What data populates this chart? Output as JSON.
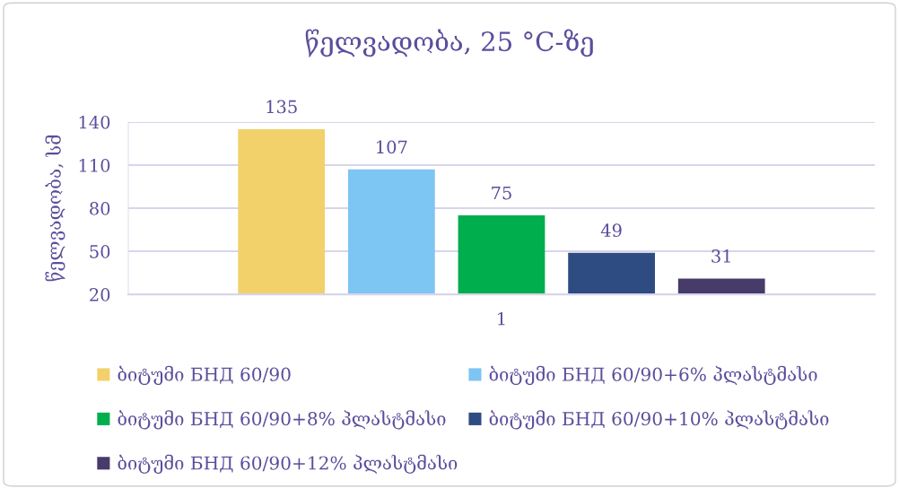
{
  "chart_data": {
    "type": "bar",
    "title": "წელვადობა, 25 °C-ზე",
    "ylabel": "წელვადობა, სმ",
    "categories": [
      "1"
    ],
    "series": [
      {
        "name": "ბიტუმი БНД 60/90",
        "color": "#f2d16b",
        "values": [
          135
        ]
      },
      {
        "name": "ბიტუმი БНД 60/90+6% პლასტმასი",
        "color": "#7dc5f2",
        "values": [
          107
        ]
      },
      {
        "name": "ბიტუმი БНД 60/90+8% პლასტმასი",
        "color": "#00ae4d",
        "values": [
          75
        ]
      },
      {
        "name": "ბიტუმი БНД 60/90+10% პლასტმასი",
        "color": "#2e4b82",
        "values": [
          49
        ]
      },
      {
        "name": "ბიტუმი БНД 60/90+12% პლასტმასი",
        "color": "#463b69",
        "values": [
          31
        ]
      }
    ],
    "ylim": [
      20,
      140
    ],
    "yticks": [
      20,
      50,
      80,
      110,
      140
    ],
    "grid": "y",
    "legend": "bottom",
    "data_labels": true
  }
}
